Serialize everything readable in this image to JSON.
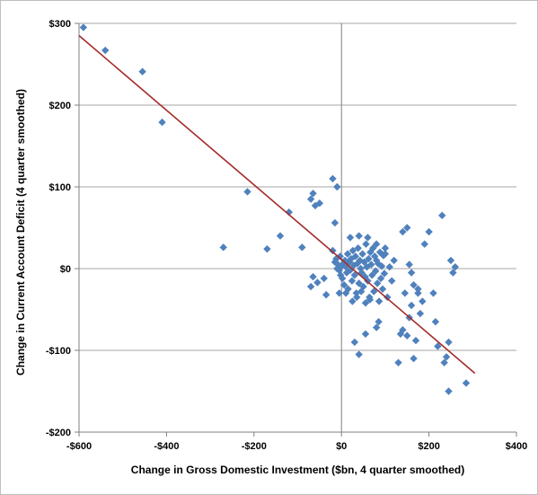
{
  "chart_data": {
    "type": "scatter",
    "title": "",
    "xlabel": "Change in Gross Domestic Investment ($bn, 4 quarter smoothed)",
    "ylabel": "Change in Current Account Deficit (4 quarter smoothed)",
    "xlim": [
      -600,
      400
    ],
    "ylim": [
      -200,
      300
    ],
    "x_ticks": [
      -600,
      -400,
      -200,
      0,
      200,
      400
    ],
    "x_tick_labels": [
      "-$600",
      "-$400",
      "-$200",
      "$0",
      "$200",
      "$400"
    ],
    "y_ticks": [
      -200,
      -100,
      0,
      100,
      200,
      300
    ],
    "y_tick_labels": [
      "-$200",
      "-$100",
      "$0",
      "$100",
      "$200",
      "$300"
    ],
    "grid": "horizontal",
    "legend": "none",
    "colors": {
      "points": "#4f81bd",
      "trendline": "#a52a2a",
      "grid": "#a6a6a6",
      "axis": "#808080"
    },
    "trendline": {
      "x": [
        -600,
        305
      ],
      "y": [
        285,
        -128
      ]
    },
    "points": [
      [
        -590,
        295
      ],
      [
        -540,
        267
      ],
      [
        -455,
        241
      ],
      [
        -410,
        179
      ],
      [
        -270,
        26
      ],
      [
        -215,
        94
      ],
      [
        -170,
        24
      ],
      [
        -140,
        40
      ],
      [
        -120,
        69
      ],
      [
        -90,
        26
      ],
      [
        -70,
        85
      ],
      [
        -65,
        92
      ],
      [
        -60,
        77
      ],
      [
        -50,
        80
      ],
      [
        -70,
        -22
      ],
      [
        -65,
        -10
      ],
      [
        -55,
        -17
      ],
      [
        -40,
        -12
      ],
      [
        -35,
        -32
      ],
      [
        -20,
        110
      ],
      [
        -10,
        100
      ],
      [
        -15,
        56
      ],
      [
        -20,
        22
      ],
      [
        -15,
        8
      ],
      [
        -12,
        12
      ],
      [
        -10,
        0
      ],
      [
        -8,
        5
      ],
      [
        -5,
        -2
      ],
      [
        -3,
        15
      ],
      [
        -2,
        -8
      ],
      [
        0,
        3
      ],
      [
        2,
        -12
      ],
      [
        4,
        6
      ],
      [
        6,
        -20
      ],
      [
        8,
        10
      ],
      [
        10,
        2
      ],
      [
        12,
        -5
      ],
      [
        14,
        18
      ],
      [
        15,
        -25
      ],
      [
        18,
        8
      ],
      [
        20,
        -2
      ],
      [
        22,
        12
      ],
      [
        24,
        -15
      ],
      [
        26,
        22
      ],
      [
        28,
        4
      ],
      [
        30,
        -8
      ],
      [
        32,
        15
      ],
      [
        34,
        -30
      ],
      [
        36,
        6
      ],
      [
        38,
        25
      ],
      [
        40,
        -18
      ],
      [
        42,
        10
      ],
      [
        44,
        0
      ],
      [
        46,
        -5
      ],
      [
        48,
        18
      ],
      [
        50,
        -22
      ],
      [
        52,
        8
      ],
      [
        54,
        -10
      ],
      [
        56,
        30
      ],
      [
        58,
        2
      ],
      [
        60,
        -15
      ],
      [
        62,
        12
      ],
      [
        64,
        -35
      ],
      [
        66,
        20
      ],
      [
        68,
        5
      ],
      [
        70,
        -8
      ],
      [
        72,
        25
      ],
      [
        74,
        -28
      ],
      [
        76,
        15
      ],
      [
        78,
        -3
      ],
      [
        80,
        10
      ],
      [
        82,
        -18
      ],
      [
        84,
        6
      ],
      [
        86,
        -40
      ],
      [
        88,
        20
      ],
      [
        90,
        -12
      ],
      [
        92,
        3
      ],
      [
        94,
        -25
      ],
      [
        96,
        16
      ],
      [
        98,
        -6
      ],
      [
        100,
        18
      ],
      [
        105,
        -35
      ],
      [
        110,
        2
      ],
      [
        115,
        -15
      ],
      [
        120,
        10
      ],
      [
        -5,
        -30
      ],
      [
        10,
        -30
      ],
      [
        25,
        -40
      ],
      [
        35,
        -35
      ],
      [
        45,
        -28
      ],
      [
        55,
        -42
      ],
      [
        65,
        -38
      ],
      [
        20,
        38
      ],
      [
        40,
        40
      ],
      [
        60,
        38
      ],
      [
        80,
        30
      ],
      [
        100,
        25
      ],
      [
        30,
        -90
      ],
      [
        40,
        -105
      ],
      [
        55,
        -80
      ],
      [
        80,
        -72
      ],
      [
        85,
        -65
      ],
      [
        130,
        -115
      ],
      [
        135,
        -80
      ],
      [
        140,
        -75
      ],
      [
        145,
        -30
      ],
      [
        150,
        -82
      ],
      [
        155,
        -60
      ],
      [
        160,
        -45
      ],
      [
        165,
        -110
      ],
      [
        170,
        -88
      ],
      [
        175,
        -25
      ],
      [
        180,
        -55
      ],
      [
        185,
        -40
      ],
      [
        140,
        45
      ],
      [
        150,
        50
      ],
      [
        155,
        5
      ],
      [
        160,
        -5
      ],
      [
        165,
        -20
      ],
      [
        175,
        -30
      ],
      [
        190,
        30
      ],
      [
        200,
        45
      ],
      [
        210,
        -30
      ],
      [
        215,
        -65
      ],
      [
        220,
        -95
      ],
      [
        230,
        65
      ],
      [
        240,
        -108
      ],
      [
        245,
        -90
      ],
      [
        250,
        10
      ],
      [
        255,
        -5
      ],
      [
        260,
        2
      ],
      [
        245,
        -150
      ],
      [
        285,
        -140
      ],
      [
        235,
        -115
      ]
    ]
  }
}
